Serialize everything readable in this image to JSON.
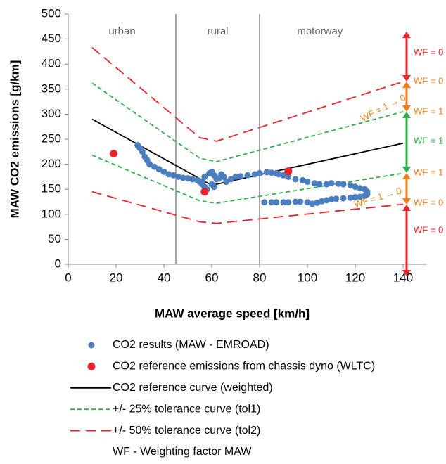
{
  "chart_data": {
    "type": "scatter",
    "x_label": "MAW average speed [km/h]",
    "y_label": "MAW CO2 emissions [g/km]",
    "xlim": [
      0,
      150
    ],
    "ylim": [
      0,
      500
    ],
    "xticks": [
      0,
      20,
      40,
      60,
      80,
      100,
      120,
      140
    ],
    "yticks": [
      0,
      50,
      100,
      150,
      200,
      250,
      300,
      350,
      400,
      450,
      500
    ],
    "regions": [
      {
        "label": "urban"
      },
      {
        "label": "rural",
        "x": 45
      },
      {
        "label": "motorway",
        "x": 80
      }
    ],
    "series": [
      {
        "name": "CO2 results (MAW - EMROAD)",
        "type": "scatter",
        "color": "#4a7ebf",
        "x": [
          29,
          30,
          31,
          32,
          33,
          34,
          36,
          38,
          40,
          42,
          44,
          46,
          48,
          50,
          52,
          54,
          55,
          56,
          57,
          58,
          56,
          57,
          59,
          60,
          61,
          62,
          60,
          58,
          61,
          63,
          64,
          65,
          66,
          68,
          70,
          72,
          75,
          78,
          80,
          83,
          85,
          87,
          88,
          90,
          92,
          95,
          98,
          100,
          103,
          105,
          108,
          110,
          113,
          115,
          118,
          120,
          122,
          124,
          125,
          125,
          124,
          122,
          120,
          118,
          115,
          112,
          110,
          108,
          106,
          104,
          102,
          100,
          97,
          95,
          92,
          90,
          87,
          85,
          82
        ],
        "values": [
          238,
          232,
          225,
          215,
          208,
          200,
          195,
          190,
          185,
          180,
          178,
          175,
          173,
          172,
          170,
          168,
          165,
          160,
          155,
          150,
          165,
          175,
          182,
          185,
          178,
          170,
          160,
          150,
          155,
          172,
          180,
          175,
          165,
          170,
          175,
          176,
          178,
          180,
          182,
          184,
          183,
          182,
          180,
          178,
          175,
          170,
          168,
          165,
          162,
          160,
          160,
          162,
          161,
          160,
          158,
          155,
          152,
          150,
          145,
          140,
          137,
          135,
          134,
          133,
          132,
          131,
          130,
          128,
          126,
          123,
          121,
          124,
          125,
          125,
          124,
          124,
          124,
          124,
          124
        ]
      },
      {
        "name": "CO2 reference emissions from chassis dyno (WLTC)",
        "type": "scatter",
        "color": "#e8242a",
        "x": [
          19,
          57,
          92
        ],
        "values": [
          221,
          145,
          186
        ]
      },
      {
        "name": "CO2 reference curve (weighted)",
        "type": "line",
        "color": "#000000",
        "x": [
          10,
          60,
          140
        ],
        "values": [
          290,
          158,
          242
        ]
      },
      {
        "name": "+/- 25% tolerance curve (tol1)",
        "type": "line",
        "dash": "6,4",
        "color": "#2eb04a",
        "x": [
          10,
          55,
          62,
          140
        ],
        "values": [
          362,
          212,
          205,
          305
        ]
      },
      {
        "name": "+/- 25% tolerance curve (tol1)",
        "type": "line",
        "dash": "6,4",
        "color": "#2eb04a",
        "x": [
          10,
          55,
          62,
          140
        ],
        "values": [
          218,
          127,
          122,
          182
        ]
      },
      {
        "name": "+/- 50% tolerance curve (tol2)",
        "type": "line",
        "dash": "14,8",
        "color": "#e8242a",
        "x": [
          10,
          55,
          62,
          140
        ],
        "values": [
          433,
          253,
          246,
          365
        ]
      },
      {
        "name": "+/- 50% tolerance curve (tol2)",
        "type": "line",
        "dash": "14,8",
        "color": "#e8242a",
        "x": [
          10,
          55,
          62,
          140
        ],
        "values": [
          145,
          85,
          82,
          120
        ]
      }
    ],
    "legend_note": "WF - Weighting factor MAW",
    "annotations": [
      "WF = 0",
      "WF = 0",
      "WF = 1",
      "WF = 1",
      "WF = 1",
      "WF = 0",
      "WF = 0",
      "WF = 1 → 0",
      "WF = 1 → 0"
    ]
  }
}
